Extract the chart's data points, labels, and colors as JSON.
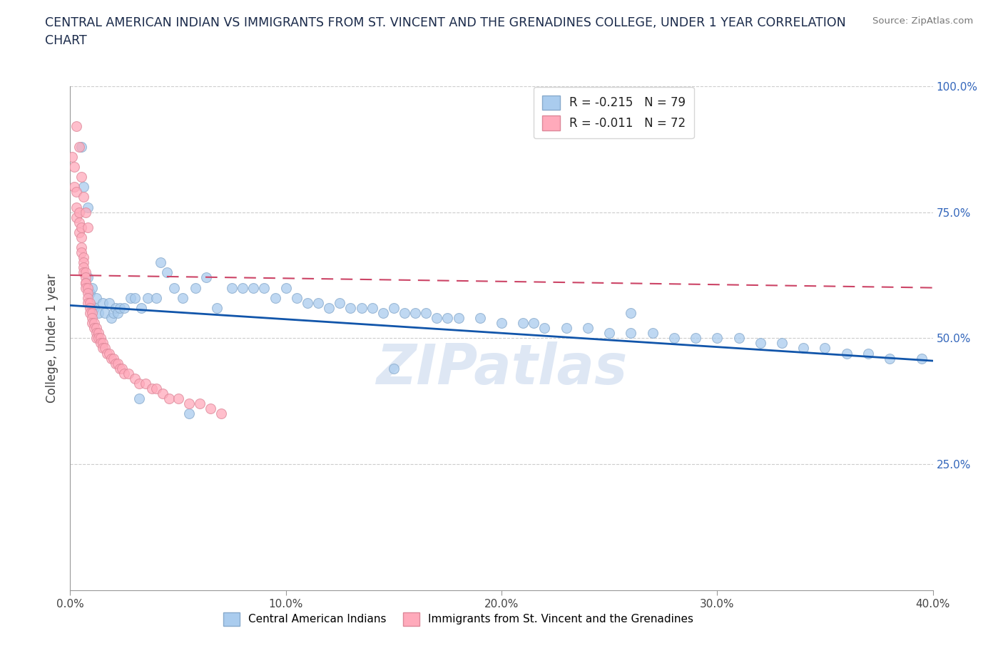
{
  "title": "CENTRAL AMERICAN INDIAN VS IMMIGRANTS FROM ST. VINCENT AND THE GRENADINES COLLEGE, UNDER 1 YEAR CORRELATION\nCHART",
  "source_text": "Source: ZipAtlas.com",
  "ylabel": "College, Under 1 year",
  "xlim": [
    0.0,
    0.4
  ],
  "ylim": [
    0.0,
    1.0
  ],
  "xtick_labels": [
    "0.0%",
    "10.0%",
    "20.0%",
    "30.0%",
    "40.0%"
  ],
  "xtick_values": [
    0.0,
    0.1,
    0.2,
    0.3,
    0.4
  ],
  "ytick_values": [
    0.25,
    0.5,
    0.75,
    1.0
  ],
  "ytick_right_labels": [
    "25.0%",
    "50.0%",
    "75.0%",
    "100.0%"
  ],
  "legend_r_values": [
    "-0.215",
    "-0.011"
  ],
  "legend_n_values": [
    "79",
    "72"
  ],
  "series1_color": "#aaccee",
  "series1_edge_color": "#88aacc",
  "series2_color": "#ffaabb",
  "series2_edge_color": "#dd8899",
  "trendline1_color": "#1155aa",
  "trendline2_color": "#cc4466",
  "watermark": "ZIPatlas",
  "watermark_color": "#c8d8ee",
  "background_color": "#ffffff",
  "series1_x": [
    0.005,
    0.006,
    0.008,
    0.008,
    0.009,
    0.01,
    0.01,
    0.011,
    0.012,
    0.013,
    0.015,
    0.016,
    0.018,
    0.019,
    0.02,
    0.021,
    0.022,
    0.023,
    0.025,
    0.028,
    0.03,
    0.033,
    0.036,
    0.04,
    0.042,
    0.045,
    0.048,
    0.052,
    0.058,
    0.063,
    0.068,
    0.075,
    0.08,
    0.085,
    0.09,
    0.095,
    0.1,
    0.105,
    0.11,
    0.115,
    0.12,
    0.125,
    0.13,
    0.135,
    0.14,
    0.145,
    0.15,
    0.155,
    0.16,
    0.165,
    0.17,
    0.175,
    0.18,
    0.19,
    0.2,
    0.21,
    0.215,
    0.22,
    0.23,
    0.24,
    0.25,
    0.26,
    0.27,
    0.28,
    0.29,
    0.3,
    0.31,
    0.32,
    0.33,
    0.34,
    0.35,
    0.36,
    0.37,
    0.38,
    0.395,
    0.032,
    0.055,
    0.15,
    0.26
  ],
  "series1_y": [
    0.88,
    0.8,
    0.76,
    0.62,
    0.59,
    0.6,
    0.56,
    0.56,
    0.58,
    0.55,
    0.57,
    0.55,
    0.57,
    0.54,
    0.55,
    0.56,
    0.55,
    0.56,
    0.56,
    0.58,
    0.58,
    0.56,
    0.58,
    0.58,
    0.65,
    0.63,
    0.6,
    0.58,
    0.6,
    0.62,
    0.56,
    0.6,
    0.6,
    0.6,
    0.6,
    0.58,
    0.6,
    0.58,
    0.57,
    0.57,
    0.56,
    0.57,
    0.56,
    0.56,
    0.56,
    0.55,
    0.56,
    0.55,
    0.55,
    0.55,
    0.54,
    0.54,
    0.54,
    0.54,
    0.53,
    0.53,
    0.53,
    0.52,
    0.52,
    0.52,
    0.51,
    0.51,
    0.51,
    0.5,
    0.5,
    0.5,
    0.5,
    0.49,
    0.49,
    0.48,
    0.48,
    0.47,
    0.47,
    0.46,
    0.46,
    0.38,
    0.35,
    0.44,
    0.55
  ],
  "series2_x": [
    0.001,
    0.002,
    0.002,
    0.003,
    0.003,
    0.003,
    0.004,
    0.004,
    0.004,
    0.005,
    0.005,
    0.005,
    0.005,
    0.006,
    0.006,
    0.006,
    0.006,
    0.007,
    0.007,
    0.007,
    0.007,
    0.007,
    0.008,
    0.008,
    0.008,
    0.008,
    0.009,
    0.009,
    0.009,
    0.01,
    0.01,
    0.01,
    0.011,
    0.011,
    0.012,
    0.012,
    0.012,
    0.013,
    0.013,
    0.014,
    0.014,
    0.015,
    0.015,
    0.016,
    0.017,
    0.018,
    0.019,
    0.02,
    0.021,
    0.022,
    0.023,
    0.024,
    0.025,
    0.027,
    0.03,
    0.032,
    0.035,
    0.038,
    0.04,
    0.043,
    0.046,
    0.05,
    0.055,
    0.06,
    0.065,
    0.07,
    0.003,
    0.004,
    0.005,
    0.006,
    0.007,
    0.008
  ],
  "series2_y": [
    0.86,
    0.84,
    0.8,
    0.79,
    0.76,
    0.74,
    0.75,
    0.73,
    0.71,
    0.72,
    0.7,
    0.68,
    0.67,
    0.66,
    0.65,
    0.64,
    0.63,
    0.63,
    0.62,
    0.61,
    0.61,
    0.6,
    0.6,
    0.59,
    0.58,
    0.57,
    0.57,
    0.56,
    0.55,
    0.55,
    0.54,
    0.53,
    0.53,
    0.52,
    0.52,
    0.51,
    0.5,
    0.51,
    0.5,
    0.5,
    0.49,
    0.49,
    0.48,
    0.48,
    0.47,
    0.47,
    0.46,
    0.46,
    0.45,
    0.45,
    0.44,
    0.44,
    0.43,
    0.43,
    0.42,
    0.41,
    0.41,
    0.4,
    0.4,
    0.39,
    0.38,
    0.38,
    0.37,
    0.37,
    0.36,
    0.35,
    0.92,
    0.88,
    0.82,
    0.78,
    0.75,
    0.72
  ],
  "trendline1_x0": 0.0,
  "trendline1_x1": 0.4,
  "trendline1_y0": 0.565,
  "trendline1_y1": 0.455,
  "trendline2_x0": 0.0,
  "trendline2_x1": 0.4,
  "trendline2_y0": 0.625,
  "trendline2_y1": 0.6,
  "figsize": [
    14.06,
    9.3
  ],
  "dpi": 100
}
